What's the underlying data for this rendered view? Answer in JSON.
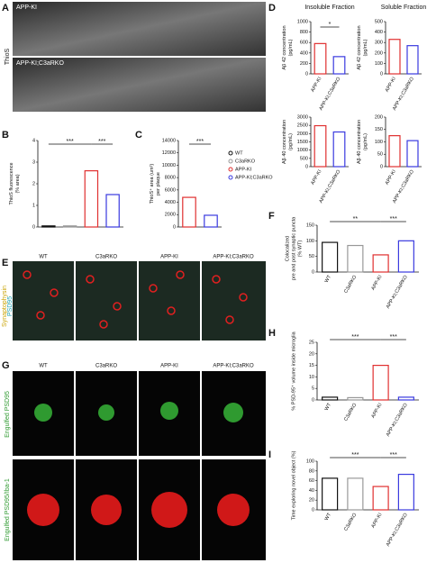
{
  "figure": {
    "letters": [
      "A",
      "B",
      "C",
      "D",
      "E",
      "F",
      "G",
      "H",
      "I"
    ]
  },
  "images": {
    "A": {
      "side_label": "ThioS",
      "labels": [
        "APP-KI",
        "APP-KI;C3aRKO"
      ]
    },
    "E": {
      "side_labels": [
        "Synaptophysin",
        "PSD95"
      ],
      "labels": [
        "WT",
        "C3aRKO",
        "APP-KI",
        "APP-KI;C3aRKO"
      ]
    },
    "G": {
      "side_labels": [
        "Engulfed PSD95",
        "Engulfed PSD95/Iba-1"
      ],
      "labels": [
        "WT",
        "C3aRKO",
        "APP-KI",
        "APP-KI;C3aRKO"
      ]
    }
  },
  "chart_data": [
    {
      "type": "bar",
      "ylabel": [
        "ThioS fluorescence",
        "(% area)"
      ],
      "categories": [
        null,
        null,
        null,
        null
      ],
      "values": [
        0.05,
        0.05,
        2.6,
        1.5
      ],
      "colors": [
        "#111111",
        "#999999",
        "#e03030",
        "#3a3adf"
      ],
      "ylim": [
        0,
        4
      ],
      "yticks": [
        0,
        1,
        2,
        3,
        4
      ],
      "annotations": [
        "***",
        "***"
      ]
    },
    {
      "type": "bar",
      "ylabel": [
        "ThioS⁺ area (um²)",
        "per plaque"
      ],
      "categories": [
        null,
        null
      ],
      "values": [
        4800,
        1900
      ],
      "colors": [
        "#e03030",
        "#3a3adf"
      ],
      "ylim": [
        0,
        14000
      ],
      "yticks": [
        0,
        2000,
        4000,
        6000,
        8000,
        10000,
        12000,
        14000
      ],
      "annotations": [
        "***"
      ],
      "legend": [
        {
          "name": "WT",
          "color": "#111111"
        },
        {
          "name": "C3aRKO",
          "color": "#999999"
        },
        {
          "name": "APP-KI",
          "color": "#e03030"
        },
        {
          "name": "APP-KI;C3aRKO",
          "color": "#3a3adf"
        }
      ]
    },
    {
      "type": "bar",
      "title": "Insoluble Fraction",
      "ylabel": [
        "Aβ 42 concentration",
        "(pg/mL)"
      ],
      "categories": [
        "APP-KI",
        "APP-KI;C3aRKO"
      ],
      "values": [
        580,
        330
      ],
      "colors": [
        "#e03030",
        "#3a3adf"
      ],
      "ylim": [
        0,
        1000
      ],
      "yticks": [
        0,
        200,
        400,
        600,
        800,
        1000
      ],
      "annotations": [
        "*"
      ]
    },
    {
      "type": "bar",
      "title": "Soluble Fraction",
      "ylabel": [
        "Aβ 42 concentration",
        "(pg/mL)"
      ],
      "categories": [
        "APP-KI",
        "APP-KI;C3aRKO"
      ],
      "values": [
        330,
        270
      ],
      "colors": [
        "#e03030",
        "#3a3adf"
      ],
      "ylim": [
        0,
        500
      ],
      "yticks": [
        0,
        100,
        200,
        300,
        400,
        500
      ],
      "annotations": []
    },
    {
      "type": "bar",
      "ylabel": [
        "Aβ 40 concentration",
        "(pg/mL)"
      ],
      "categories": [
        "APP-KI",
        "APP-KI;C3aRKO"
      ],
      "values": [
        2480,
        2100
      ],
      "colors": [
        "#e03030",
        "#3a3adf"
      ],
      "ylim": [
        0,
        3000
      ],
      "yticks": [
        0,
        500,
        1000,
        1500,
        2000,
        2500,
        3000
      ],
      "annotations": []
    },
    {
      "type": "bar",
      "ylabel": [
        "Aβ 40 concentration",
        "(pg/mL)"
      ],
      "categories": [
        "APP-KI",
        "APP-KI;C3aRKO"
      ],
      "values": [
        125,
        105
      ],
      "colors": [
        "#e03030",
        "#3a3adf"
      ],
      "ylim": [
        0,
        200
      ],
      "yticks": [
        0,
        50,
        100,
        150,
        200
      ],
      "annotations": []
    },
    {
      "type": "bar",
      "ylabel": [
        "Colocalized",
        "pre and post synaptic puncta",
        "(% WT)"
      ],
      "categories": [
        "WT",
        "C3aRKO",
        "APP-KI",
        "APP-KI;C3aRKO"
      ],
      "values": [
        95,
        85,
        55,
        100
      ],
      "colors": [
        "#111111",
        "#999999",
        "#e03030",
        "#3a3adf"
      ],
      "ylim": [
        0,
        150
      ],
      "yticks": [
        0,
        50,
        100,
        150
      ],
      "annotations": [
        "**",
        "***"
      ]
    },
    {
      "type": "bar",
      "ylabel": [
        "% PSD-95⁺ volume inside microglia"
      ],
      "categories": [
        "WT",
        "C3aRKO",
        "APP-KI",
        "APP-KI;C3aRKO"
      ],
      "values": [
        1.2,
        1.0,
        15,
        1.2
      ],
      "colors": [
        "#111111",
        "#999999",
        "#e03030",
        "#3a3adf"
      ],
      "ylim": [
        0,
        25
      ],
      "yticks": [
        0,
        5,
        10,
        15,
        20,
        25
      ],
      "annotations": [
        "***",
        "***"
      ]
    },
    {
      "type": "bar",
      "ylabel": [
        "Time exploring novel object (%)"
      ],
      "categories": [
        "WT",
        "C3aRKO",
        "APP-KI",
        "APP-KI;C3aRKO"
      ],
      "values": [
        65,
        65,
        48,
        73
      ],
      "colors": [
        "#111111",
        "#999999",
        "#e03030",
        "#3a3adf"
      ],
      "ylim": [
        0,
        100
      ],
      "yticks": [
        0,
        20,
        40,
        60,
        80,
        100
      ],
      "annotations": [
        "***",
        "***"
      ]
    }
  ]
}
